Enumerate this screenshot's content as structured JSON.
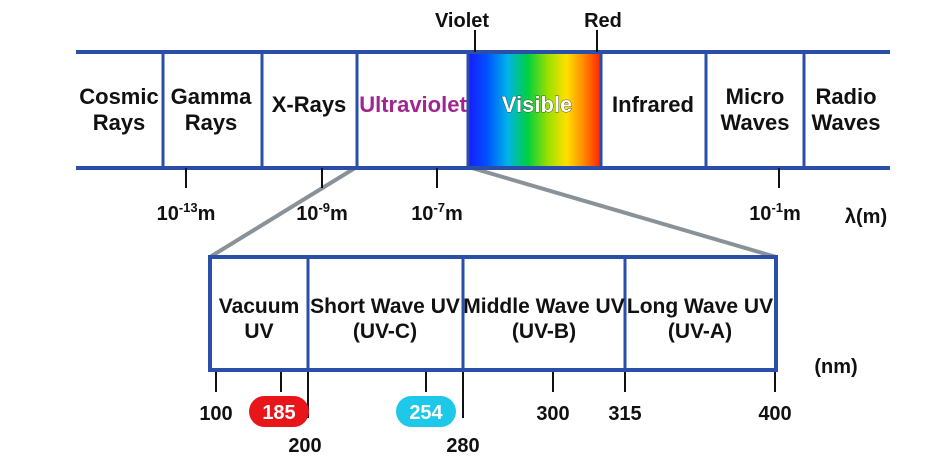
{
  "colors": {
    "line": "#2a4fa8",
    "connector": "#8a9299",
    "ultraviolet_text": "#a0268f",
    "badge_185": "#e8161a",
    "badge_254": "#1ec8e8",
    "text": "#111111"
  },
  "spectrum": {
    "violet_label": "Violet",
    "red_label": "Red",
    "bands": [
      {
        "id": "cosmic",
        "lines": [
          "Cosmic",
          "Rays"
        ]
      },
      {
        "id": "gamma",
        "lines": [
          "Gamma",
          "Rays"
        ]
      },
      {
        "id": "xray",
        "lines": [
          "X-Rays"
        ]
      },
      {
        "id": "ultraviolet",
        "lines": [
          "Ultraviolet"
        ]
      },
      {
        "id": "visible",
        "lines": [
          "Visible"
        ]
      },
      {
        "id": "infrared",
        "lines": [
          "Infrared"
        ]
      },
      {
        "id": "micro",
        "lines": [
          "Micro",
          "Waves"
        ]
      },
      {
        "id": "radio",
        "lines": [
          "Radio",
          "Waves"
        ]
      }
    ],
    "ticks": [
      {
        "base": "10",
        "exp": "-13",
        "unit": "m"
      },
      {
        "base": "10",
        "exp": "-9",
        "unit": "m"
      },
      {
        "base": "10",
        "exp": "-7",
        "unit": "m"
      },
      {
        "base": "10",
        "exp": "-1",
        "unit": "m"
      }
    ],
    "unit_label": "λ(m)"
  },
  "uv_detail": {
    "bands": [
      {
        "id": "vacuum",
        "lines": [
          "Vacuum",
          "UV"
        ]
      },
      {
        "id": "uvc",
        "lines": [
          "Short Wave UV",
          "(UV-C)"
        ]
      },
      {
        "id": "uvb",
        "lines": [
          "Middle Wave UV",
          "(UV-B)"
        ]
      },
      {
        "id": "uva",
        "lines": [
          "Long Wave UV",
          "(UV-A)"
        ]
      }
    ],
    "unit_label": "(nm)",
    "ticks": [
      {
        "value": "100"
      },
      {
        "value": "185",
        "badge": "red"
      },
      {
        "value": "200"
      },
      {
        "value": "254",
        "badge": "cyan"
      },
      {
        "value": "280"
      },
      {
        "value": "300"
      },
      {
        "value": "315"
      },
      {
        "value": "400"
      }
    ]
  }
}
